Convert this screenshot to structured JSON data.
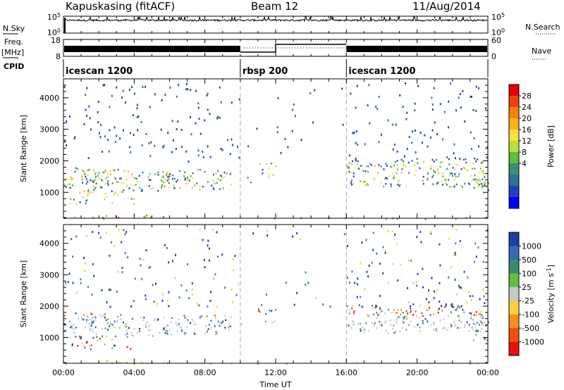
{
  "header": {
    "station": "Kapuskasing (fitACF)",
    "beam": "Beam 12",
    "date": "11/Aug/2014"
  },
  "left_labels": {
    "nsky": "N.Sky",
    "freq_top": "Freq.",
    "freq_unit": "[MHz]",
    "cpid": "CPID"
  },
  "right_labels": {
    "nsearch": "N.Search",
    "nave": "Nave"
  },
  "colors": {
    "axis": "#000000",
    "trace": "#000000",
    "dashed_line": "#aaaaaa"
  },
  "chart_data": [
    {
      "type": "line",
      "panel": "noise",
      "left_ticks": [
        "10^5",
        "10^0"
      ],
      "right_ticks": [
        "10^5",
        "10^0"
      ]
    },
    {
      "type": "line",
      "panel": "frequency",
      "left_ticks": [
        "18",
        "8"
      ],
      "right_ticks": [
        "60",
        "0"
      ]
    },
    {
      "type": "table",
      "panel": "cpid",
      "segments": [
        {
          "label": "icescan 1200",
          "start_hour": 0,
          "end_hour": 10
        },
        {
          "label": "rbsp 200",
          "start_hour": 10,
          "end_hour": 16
        },
        {
          "label": "icescan 1200",
          "start_hour": 16,
          "end_hour": 24
        }
      ]
    },
    {
      "type": "heatmap",
      "panel": "power",
      "ylabel": "Slant Range [km]",
      "ylim": [
        180,
        4600
      ],
      "yticks": [
        1000,
        2000,
        3000,
        4000
      ],
      "colorbar_title": "Power [dB]",
      "colorbar_labels": [
        "28",
        "24",
        "20",
        "16",
        "12",
        "8",
        "4"
      ],
      "colorbar_colors": [
        "#e80000",
        "#f04010",
        "#f87f10",
        "#f8b020",
        "#f8e040",
        "#b8e03a",
        "#58c040",
        "#3a9070",
        "#307090",
        "#2040c0",
        "#0000ff"
      ]
    },
    {
      "type": "heatmap",
      "panel": "velocity",
      "ylabel": "Slant Range [km]",
      "ylim": [
        180,
        4600
      ],
      "yticks": [
        1000,
        2000,
        3000,
        4000
      ],
      "xlabel": "Time UT",
      "xticks": [
        "00:00",
        "04:00",
        "08:00",
        "12:00",
        "16:00",
        "20:00",
        "00:00"
      ],
      "colorbar_title": "Velocity [m s-1]",
      "colorbar_labels": [
        "1000",
        "500",
        "100",
        "25",
        "-25",
        "-100",
        "-500",
        "-1000"
      ],
      "colorbar_colors": [
        "#1f3ea8",
        "#3a68b0",
        "#3a8a70",
        "#60c040",
        "#c8c8c8",
        "#f8d040",
        "#f89020",
        "#f05010",
        "#e81010"
      ]
    }
  ]
}
